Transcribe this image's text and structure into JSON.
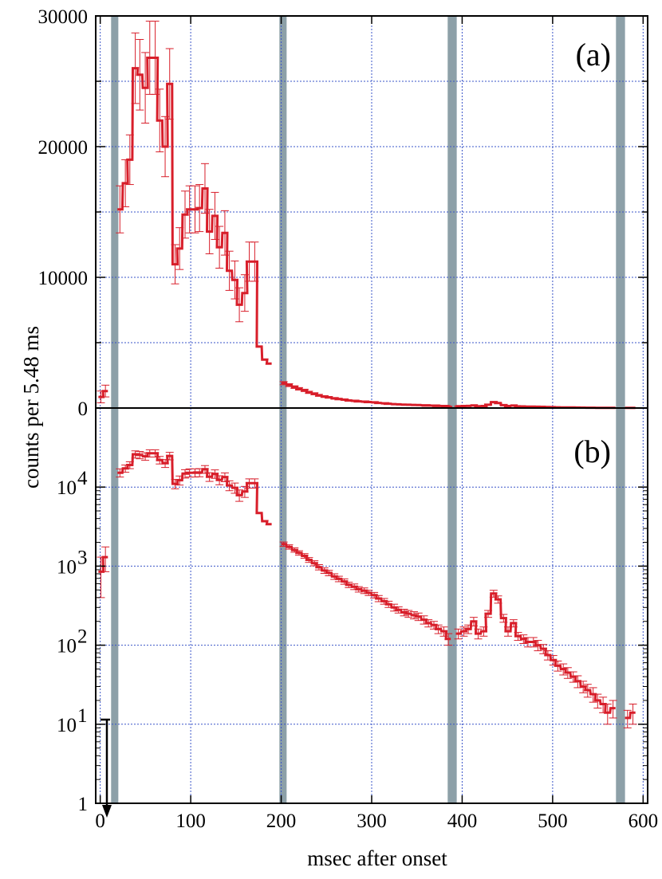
{
  "chart_data": [
    {
      "panel": "(a)",
      "type": "line",
      "style": "step histogram with error bars",
      "xlabel": "msec after onset",
      "ylabel": "counts per 5.48 ms",
      "xlim": [
        -5,
        605
      ],
      "ylim": [
        0,
        30000
      ],
      "yscale": "linear",
      "grid": true,
      "x_ticks": [
        "0",
        "100",
        "200",
        "300",
        "400",
        "500",
        "600"
      ],
      "y_ticks": [
        "0",
        "10000",
        "20000",
        "30000"
      ],
      "line_color": "#d81e2a",
      "band_color": "#8da0a8",
      "shaded_bands_ms": [
        [
          12,
          20
        ],
        [
          198,
          206
        ],
        [
          384,
          394
        ],
        [
          570,
          580
        ]
      ],
      "bin_width_ms": 5.48,
      "series": [
        {
          "x": [
            -2,
            3,
            8,
            14,
            19,
            25,
            30,
            36,
            41,
            47,
            52,
            58,
            63,
            69,
            74,
            80,
            85,
            91,
            96,
            102,
            107,
            113,
            118,
            124,
            129,
            135,
            140,
            146,
            151,
            157,
            162,
            168,
            173,
            179,
            184,
            190,
            200,
            206,
            212,
            217,
            223,
            228,
            234,
            239,
            245,
            250,
            256,
            261,
            267,
            272,
            278,
            283,
            289,
            294,
            300,
            305,
            311,
            316,
            322,
            327,
            333,
            338,
            344,
            349,
            355,
            360,
            366,
            371,
            377,
            382,
            393,
            399,
            404,
            410,
            415,
            421,
            426,
            432,
            437,
            443,
            448,
            454,
            459,
            465,
            470,
            476,
            481,
            487,
            492,
            498,
            503,
            509,
            514,
            520,
            525,
            531,
            536,
            542,
            547,
            553,
            558,
            564,
            580,
            586
          ],
          "y": [
            850,
            1300,
            0,
            0,
            15200,
            17200,
            19000,
            26000,
            25500,
            24500,
            26800,
            26800,
            22000,
            20000,
            24800,
            11000,
            12200,
            14800,
            15200,
            15200,
            15300,
            16800,
            13500,
            14700,
            12300,
            13400,
            10500,
            9800,
            7900,
            8800,
            11200,
            11200,
            4700,
            3700,
            3400,
            0,
            1900,
            1750,
            1600,
            1470,
            1350,
            1200,
            1090,
            970,
            880,
            820,
            740,
            690,
            640,
            580,
            550,
            510,
            490,
            460,
            430,
            390,
            360,
            330,
            300,
            280,
            260,
            250,
            240,
            230,
            210,
            190,
            180,
            160,
            150,
            120,
            140,
            150,
            160,
            200,
            140,
            150,
            250,
            450,
            380,
            220,
            150,
            190,
            130,
            120,
            110,
            110,
            100,
            90,
            75,
            65,
            55,
            50,
            45,
            40,
            35,
            30,
            27,
            24,
            20,
            18,
            14,
            16,
            12,
            14
          ],
          "err": [
            450,
            450,
            0,
            0,
            1800,
            1800,
            1900,
            2700,
            2700,
            2700,
            2800,
            2800,
            2400,
            2300,
            2700,
            1500,
            1600,
            1800,
            1800,
            1800,
            1800,
            1900,
            1700,
            1800,
            1600,
            1700,
            1500,
            1450,
            1300,
            1400,
            1500,
            1500,
            0,
            0,
            0,
            0,
            120,
            110,
            100,
            95,
            90,
            85,
            80,
            75,
            70,
            65,
            60,
            55,
            50,
            45,
            45,
            40,
            40,
            35,
            35,
            35,
            30,
            30,
            30,
            25,
            25,
            25,
            25,
            25,
            25,
            20,
            20,
            20,
            20,
            20,
            20,
            20,
            20,
            25,
            20,
            20,
            25,
            45,
            40,
            25,
            20,
            20,
            15,
            15,
            15,
            15,
            15,
            12,
            10,
            9,
            8,
            8,
            7,
            6,
            6,
            5,
            5,
            5,
            4,
            4,
            4,
            4,
            3,
            4
          ]
        }
      ]
    },
    {
      "panel": "(b)",
      "type": "line",
      "style": "step histogram with error bars",
      "xlabel": "msec after onset",
      "ylabel": "counts per 5.48 ms",
      "xlim": [
        -5,
        605
      ],
      "ylim": [
        1,
        100000
      ],
      "yscale": "log",
      "grid": true,
      "x_ticks": [
        "0",
        "100",
        "200",
        "300",
        "400",
        "500",
        "600"
      ],
      "y_ticks": [
        "1",
        "10",
        "10",
        "10",
        "10"
      ],
      "y_tick_exponents": [
        "",
        "1",
        "2",
        "3",
        "4"
      ],
      "line_color": "#d81e2a",
      "band_color": "#8da0a8",
      "shaded_bands_ms": [
        [
          12,
          20
        ],
        [
          198,
          206
        ],
        [
          384,
          394
        ],
        [
          570,
          580
        ]
      ],
      "annotation": "downward arrow near x = 0 from y = 10 to y = 1"
    }
  ]
}
